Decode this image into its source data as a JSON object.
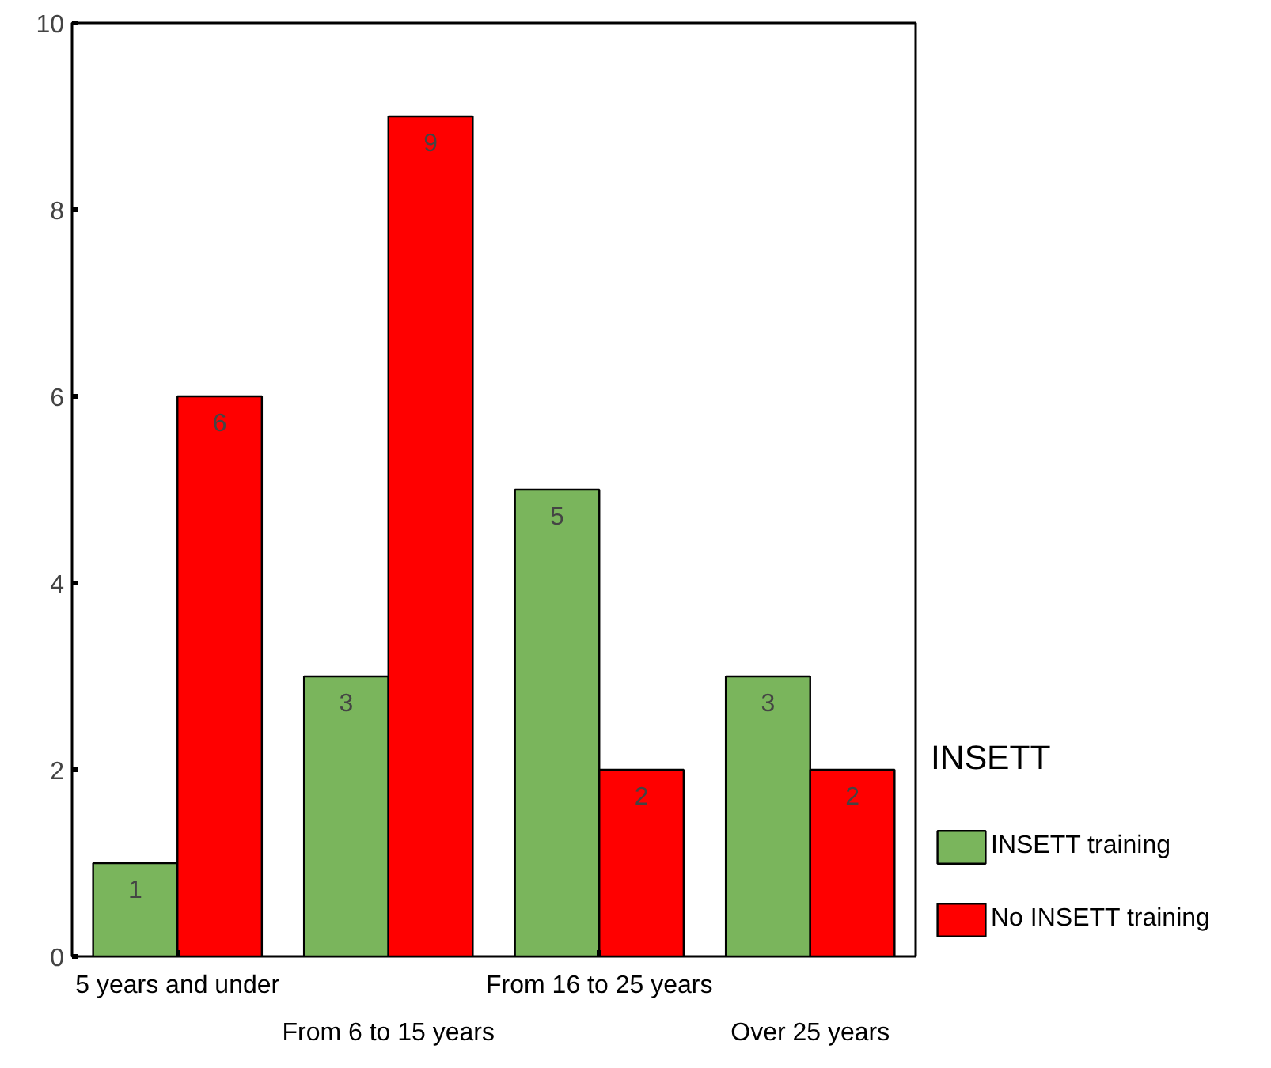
{
  "chart_data": {
    "type": "bar",
    "categories": [
      "5 years and under",
      "From 6 to 15 years",
      "From 16 to 25 years",
      "Over 25 years"
    ],
    "series": [
      {
        "name": "INSETT training",
        "color": "#7ab55c",
        "values": [
          1,
          3,
          5,
          3
        ]
      },
      {
        "name": "No INSETT training",
        "color": "#ff0000",
        "values": [
          6,
          9,
          2,
          2
        ]
      }
    ],
    "ylim": [
      0,
      10
    ],
    "yticks": [
      0,
      2,
      4,
      6,
      8,
      10
    ],
    "grid": false,
    "legend": "right",
    "legend_title": "INSETT",
    "data_labels": true
  }
}
